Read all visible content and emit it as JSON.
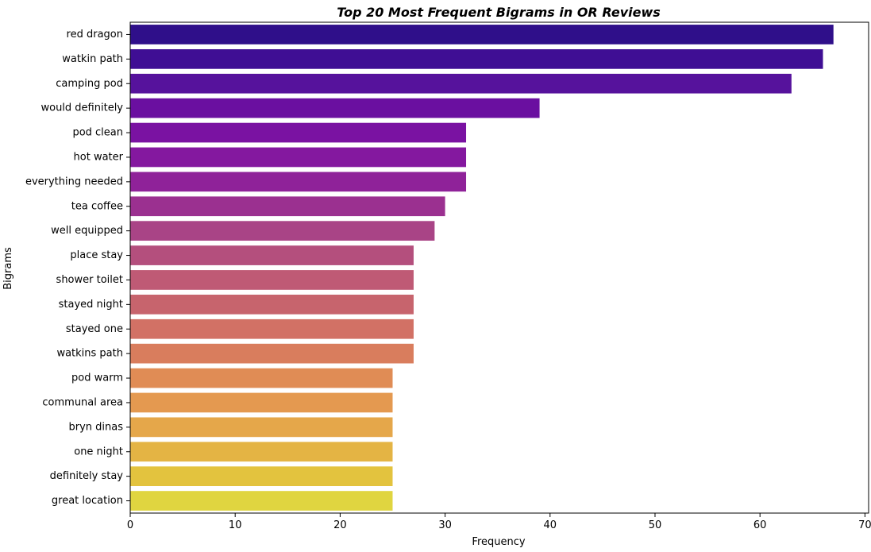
{
  "chart_data": {
    "type": "bar",
    "orientation": "horizontal",
    "title": "Top 20 Most Frequent Bigrams in OR Reviews",
    "xlabel": "Frequency",
    "ylabel": "Bigrams",
    "xlim": [
      0,
      70.35
    ],
    "xticks": [
      0,
      10,
      20,
      30,
      40,
      50,
      60,
      70
    ],
    "grid": false,
    "palette": "plasma",
    "categories": [
      "red dragon",
      "watkin path",
      "camping pod",
      "would definitely",
      "pod clean",
      "hot water",
      "everything needed",
      "tea coffee",
      "well equipped",
      "place stay",
      "shower toilet",
      "stayed night",
      "stayed one",
      "watkins path",
      "pod warm",
      "communal area",
      "bryn dinas",
      "one night",
      "definitely stay",
      "great location"
    ],
    "values": [
      67,
      66,
      63,
      39,
      32,
      32,
      32,
      30,
      29,
      27,
      27,
      27,
      27,
      27,
      25,
      25,
      25,
      25,
      25,
      25
    ],
    "colors": [
      "#2f0f8a",
      "#3f0e94",
      "#56129c",
      "#6a0fa0",
      "#7a12a2",
      "#84189f",
      "#8f2299",
      "#9b3090",
      "#a94486",
      "#b44f7d",
      "#bf5a75",
      "#c7646d",
      "#d27165",
      "#d97d5d",
      "#e08c55",
      "#e49950",
      "#e5a74a",
      "#e4b444",
      "#e3c33e",
      "#e0d540"
    ]
  }
}
